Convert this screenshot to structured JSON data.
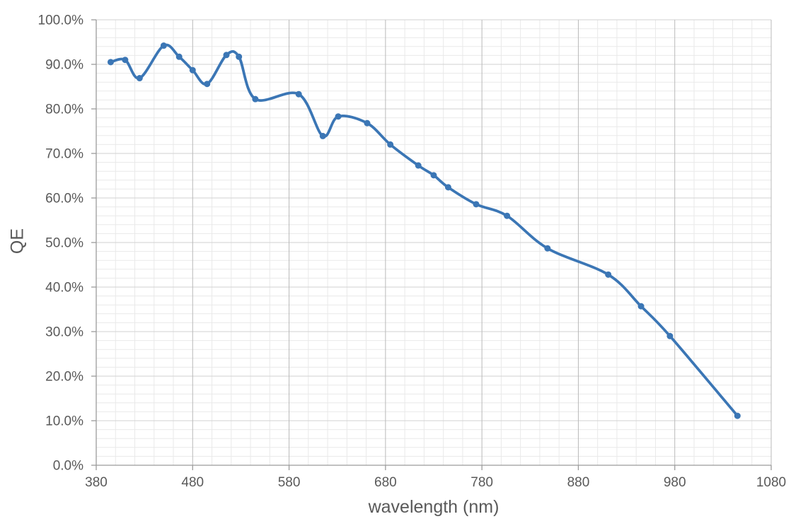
{
  "chart_data": {
    "type": "line",
    "title": "",
    "xlabel": "wavelength (nm)",
    "ylabel": "QE",
    "x": [
      395,
      410,
      425,
      450,
      466,
      480,
      495,
      515,
      528,
      545,
      590,
      615,
      631,
      661,
      685,
      714,
      730,
      745,
      774,
      806,
      848,
      911,
      945,
      975,
      1045
    ],
    "series": [
      {
        "name": "QE",
        "values_pct": [
          90.5,
          91.0,
          86.9,
          94.2,
          91.7,
          88.7,
          85.6,
          92.1,
          91.7,
          82.2,
          83.3,
          73.9,
          78.3,
          76.8,
          72.0,
          67.3,
          65.1,
          62.4,
          58.6,
          56.0,
          48.7,
          42.8,
          35.7,
          29.0,
          11.1
        ]
      }
    ],
    "xlim": [
      380,
      1080
    ],
    "ylim_pct": [
      0,
      100
    ],
    "x_major_step": 100,
    "x_minor_step": 20,
    "y_major_step_pct": 10,
    "y_minor_step_pct": 2,
    "x_tick_labels": [
      "380",
      "480",
      "580",
      "680",
      "780",
      "880",
      "980",
      "1080"
    ],
    "y_tick_labels_top_down": [
      "100.0%",
      "90.0%",
      "80.0%",
      "70.0%",
      "60.0%",
      "50.0%",
      "40.0%",
      "30.0%",
      "20.0%",
      "10.0%",
      "0.0%"
    ],
    "grid": "major+minor",
    "legend": "none",
    "smoothed_line": true,
    "marker": "circle",
    "colors": {
      "series": "#3B76B5",
      "gridline_minor": "#E9E9E9",
      "gridline_major_h": "#D2D2D2",
      "gridline_major_v": "#B9B9B9",
      "axis_line": "#9B9B9B",
      "tick_label": "#595959",
      "axis_title": "#595959",
      "background": "#FFFFFF"
    }
  }
}
